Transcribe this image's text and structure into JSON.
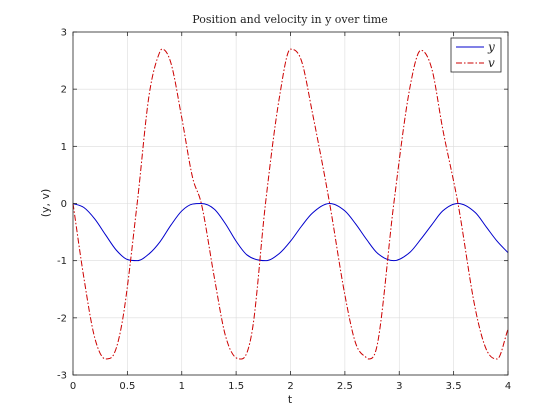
{
  "chart_data": {
    "type": "line",
    "title": "Position and velocity in y over time",
    "xlabel": "t",
    "ylabel": "(y, v)",
    "xlim": [
      0,
      4
    ],
    "ylim": [
      -3,
      3
    ],
    "xticks": [
      0,
      0.5,
      1,
      1.5,
      2,
      2.5,
      3,
      3.5,
      4
    ],
    "yticks": [
      -3,
      -2,
      -1,
      0,
      1,
      2,
      3
    ],
    "xtick_labels": [
      "0",
      "0.5",
      "1",
      "1.5",
      "2",
      "2.5",
      "3",
      "3.5",
      "4"
    ],
    "ytick_labels": [
      "-3",
      "-2",
      "-1",
      "0",
      "1",
      "2",
      "3"
    ],
    "grid": true,
    "legend_position": "top-right",
    "series": [
      {
        "name": "y",
        "color": "#0000cc",
        "line_style": "solid",
        "x": [
          0,
          0.1,
          0.2,
          0.3,
          0.4,
          0.5,
          0.59,
          0.7,
          0.8,
          0.9,
          1.0,
          1.1,
          1.18,
          1.3,
          1.4,
          1.5,
          1.6,
          1.77,
          1.9,
          2.0,
          2.1,
          2.2,
          2.36,
          2.5,
          2.6,
          2.7,
          2.8,
          2.95,
          3.1,
          3.2,
          3.3,
          3.4,
          3.54,
          3.7,
          3.8,
          3.9,
          4.0
        ],
        "y": [
          0,
          -0.07,
          -0.27,
          -0.55,
          -0.82,
          -0.98,
          -1.0,
          -0.88,
          -0.67,
          -0.38,
          -0.13,
          -0.01,
          0.0,
          -0.1,
          -0.35,
          -0.66,
          -0.9,
          -1.0,
          -0.87,
          -0.66,
          -0.4,
          -0.17,
          0.0,
          -0.13,
          -0.36,
          -0.63,
          -0.87,
          -1.0,
          -0.85,
          -0.62,
          -0.37,
          -0.13,
          0.0,
          -0.16,
          -0.41,
          -0.66,
          -0.86
        ]
      },
      {
        "name": "v",
        "color": "#cc0000",
        "line_style": "dashdot",
        "x": [
          0,
          0.1,
          0.2,
          0.3,
          0.35,
          0.45,
          0.59,
          0.7,
          0.8,
          0.82,
          0.9,
          1.0,
          1.1,
          1.18,
          1.3,
          1.4,
          1.5,
          1.55,
          1.65,
          1.77,
          1.9,
          2.0,
          2.1,
          2.2,
          2.36,
          2.5,
          2.6,
          2.7,
          2.72,
          2.8,
          2.95,
          3.1,
          3.2,
          3.3,
          3.4,
          3.54,
          3.7,
          3.8,
          3.9,
          4.0
        ],
        "y": [
          0,
          -1.3,
          -2.35,
          -2.72,
          -2.7,
          -2.1,
          0.0,
          1.9,
          2.66,
          2.7,
          2.46,
          1.5,
          0.45,
          0.0,
          -1.3,
          -2.3,
          -2.7,
          -2.72,
          -2.2,
          0.0,
          1.88,
          2.7,
          2.5,
          1.6,
          0.0,
          -1.6,
          -2.45,
          -2.7,
          -2.72,
          -2.45,
          0.0,
          2.05,
          2.68,
          2.35,
          1.3,
          0.0,
          -1.85,
          -2.55,
          -2.72,
          -2.2
        ]
      }
    ]
  }
}
